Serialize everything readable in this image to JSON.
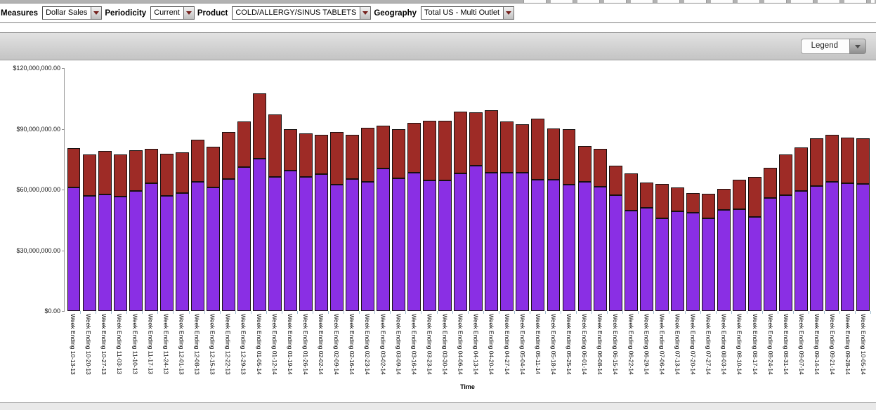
{
  "toolbar": {
    "filters": [
      {
        "label": "Measures",
        "value": "Dollar Sales"
      },
      {
        "label": "Periodicity",
        "value": "Current"
      },
      {
        "label": "Product",
        "value": "COLD/ALLERGY/SINUS TABLETS"
      },
      {
        "label": "Geography",
        "value": "Total US - Multi Outlet"
      }
    ]
  },
  "legend_button": {
    "label": "Legend"
  },
  "chart_data": {
    "type": "bar",
    "stacked": true,
    "title": "",
    "xlabel": "Time",
    "ylabel": "",
    "unit": "USD millions",
    "ylim": [
      0,
      120
    ],
    "y_ticks": [
      "$0.00",
      "$30,000,000.00",
      "$60,000,000.00",
      "$90,000,000.00",
      "$120,000,000.00"
    ],
    "grid": false,
    "legend_position": "collapsed-top-right",
    "colors": {
      "series1": "#8A2FE4",
      "series2": "#9E2B26",
      "segment_border": "#17100f"
    },
    "categories": [
      "Week Ending 10-13-13",
      "Week Ending 10-20-13",
      "Week Ending 10-27-13",
      "Week Ending 11-03-13",
      "Week Ending 11-10-13",
      "Week Ending 11-17-13",
      "Week Ending 11-24-13",
      "Week Ending 12-01-13",
      "Week Ending 12-08-13",
      "Week Ending 12-15-13",
      "Week Ending 12-22-13",
      "Week Ending 12-29-13",
      "Week Ending 01-05-14",
      "Week Ending 01-12-14",
      "Week Ending 01-19-14",
      "Week Ending 01-26-14",
      "Week Ending 02-02-14",
      "Week Ending 02-09-14",
      "Week Ending 02-16-14",
      "Week Ending 02-23-14",
      "Week Ending 03-02-14",
      "Week Ending 03-09-14",
      "Week Ending 03-16-14",
      "Week Ending 03-23-14",
      "Week Ending 03-30-14",
      "Week Ending 04-06-14",
      "Week Ending 04-13-14",
      "Week Ending 04-20-14",
      "Week Ending 04-27-14",
      "Week Ending 05-04-14",
      "Week Ending 05-11-14",
      "Week Ending 05-18-14",
      "Week Ending 05-25-14",
      "Week Ending 06-01-14",
      "Week Ending 06-08-14",
      "Week Ending 06-15-14",
      "Week Ending 06-22-14",
      "Week Ending 06-29-14",
      "Week Ending 07-06-14",
      "Week Ending 07-13-14",
      "Week Ending 07-20-14",
      "Week Ending 07-27-14",
      "Week Ending 08-03-14",
      "Week Ending 08-10-14",
      "Week Ending 08-17-14",
      "Week Ending 08-24-14",
      "Week Ending 08-31-14",
      "Week Ending 09-07-14",
      "Week Ending 09-14-14",
      "Week Ending 09-21-14",
      "Week Ending 09-28-14",
      "Week Ending 10-05-14"
    ],
    "series": [
      {
        "name": "series-1-purple",
        "color": "#8A2FE4",
        "values": [
          61.0,
          57.0,
          57.5,
          56.5,
          59.3,
          63.0,
          57.0,
          58.3,
          63.8,
          61.0,
          65.2,
          71.0,
          75.2,
          66.3,
          69.3,
          66.2,
          67.6,
          62.4,
          65.2,
          63.8,
          70.3,
          65.5,
          68.3,
          64.5,
          64.5,
          67.9,
          71.7,
          68.3,
          68.3,
          68.3,
          64.8,
          64.8,
          62.4,
          63.8,
          61.4,
          57.2,
          49.7,
          51.0,
          45.9,
          49.3,
          48.6,
          45.9,
          50.0,
          50.3,
          46.6,
          55.9,
          57.2,
          59.3,
          61.7,
          63.8,
          63.1,
          62.8
        ]
      },
      {
        "name": "series-2-red",
        "color": "#9E2B26",
        "values": [
          19.5,
          20.2,
          21.5,
          20.7,
          20.0,
          17.0,
          20.6,
          20.0,
          20.7,
          20.0,
          23.1,
          22.8,
          32.4,
          30.7,
          20.4,
          21.7,
          19.3,
          26.2,
          22.0,
          26.9,
          21.4,
          24.5,
          24.5,
          29.6,
          29.6,
          30.7,
          26.6,
          31.0,
          25.5,
          23.8,
          30.4,
          25.5,
          27.3,
          17.6,
          18.6,
          14.5,
          18.2,
          12.4,
          16.9,
          11.7,
          9.7,
          12.0,
          10.3,
          14.5,
          19.6,
          14.8,
          20.0,
          21.4,
          23.5,
          23.4,
          22.4,
          22.4
        ]
      }
    ]
  }
}
